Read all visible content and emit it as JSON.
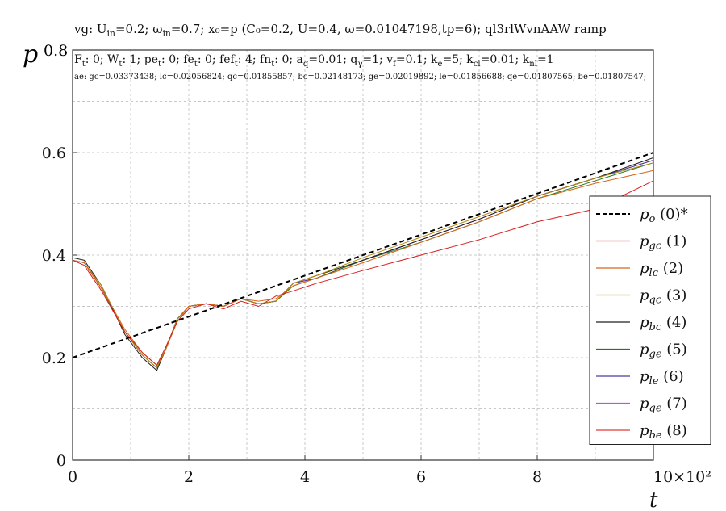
{
  "header": {
    "title": "vg: U_in=0.2; ω_in=0.7; x₀=p (C₀=0.2, U=0.4, ω=0.01047198,tp=6); ql3rlWvnAAW ramp",
    "params": "F_t: 0; W_t: 1; pe_t: 0; fe_t: 0; fef_t: 4; fn_t: 0; a_q=0.01; q_γ=1; v_f=0.1; k_e=5; k_cl=0.01; k_nl=1",
    "errors": "ae: gc=0.03373438; lc=0.02056824; qc=0.01855857; bc=0.02148173; ge=0.02019892; le=0.01856688; qe=0.01807565; be=0.01807547;"
  },
  "chart_data": {
    "type": "line",
    "xlabel": "t",
    "x_multiplier": "10×10²",
    "ylabel": "p",
    "y_top_label": "0.8",
    "xlim": [
      0,
      10
    ],
    "ylim": [
      0,
      0.8
    ],
    "x_ticks": [
      "0",
      "2",
      "4",
      "6",
      "8"
    ],
    "y_ticks": [
      "0",
      "0.2",
      "0.4",
      "0.6"
    ],
    "grid": true,
    "legend_position": "right",
    "series": [
      {
        "name": "p_o (0)*",
        "sub": "o",
        "num": "(0)*",
        "color": "#000000",
        "dashed": true,
        "x": [
          0,
          10
        ],
        "y": [
          0.2,
          0.6
        ]
      },
      {
        "name": "p_gc (1)",
        "sub": "gc",
        "num": "(1)",
        "color": "#d62020",
        "x": [
          0,
          0.2,
          0.5,
          0.9,
          1.2,
          1.45,
          1.6,
          1.8,
          2.0,
          2.3,
          2.6,
          2.9,
          3.2,
          3.5,
          3.8,
          4.2,
          5,
          6,
          7,
          8,
          9,
          10
        ],
        "y": [
          0.39,
          0.38,
          0.33,
          0.25,
          0.21,
          0.185,
          0.22,
          0.27,
          0.295,
          0.305,
          0.295,
          0.31,
          0.3,
          0.32,
          0.33,
          0.345,
          0.37,
          0.4,
          0.43,
          0.465,
          0.49,
          0.545
        ]
      },
      {
        "name": "p_lc (2)",
        "sub": "lc",
        "num": "(2)",
        "color": "#d8661a",
        "x": [
          0,
          0.2,
          0.5,
          0.9,
          1.2,
          1.45,
          1.6,
          1.8,
          2.0,
          2.3,
          2.6,
          2.9,
          3.2,
          3.5,
          3.8,
          4.2,
          5,
          6,
          7,
          8,
          9,
          10
        ],
        "y": [
          0.39,
          0.385,
          0.335,
          0.255,
          0.21,
          0.185,
          0.215,
          0.27,
          0.3,
          0.305,
          0.3,
          0.315,
          0.31,
          0.315,
          0.34,
          0.355,
          0.385,
          0.425,
          0.465,
          0.51,
          0.54,
          0.565
        ]
      },
      {
        "name": "p_qc (3)",
        "sub": "qc",
        "num": "(3)",
        "color": "#b38a10",
        "x": [
          0,
          0.2,
          0.5,
          0.9,
          1.2,
          1.45,
          1.6,
          1.8,
          2.0,
          2.3,
          2.6,
          2.9,
          3.2,
          3.5,
          3.8,
          4.2,
          5,
          6,
          7,
          8,
          9,
          10
        ],
        "y": [
          0.39,
          0.385,
          0.34,
          0.25,
          0.205,
          0.18,
          0.215,
          0.275,
          0.3,
          0.305,
          0.3,
          0.315,
          0.305,
          0.31,
          0.345,
          0.36,
          0.395,
          0.435,
          0.475,
          0.515,
          0.55,
          0.58
        ]
      },
      {
        "name": "p_bc (4)",
        "sub": "bc",
        "num": "(4)",
        "color": "#222222",
        "x": [
          0,
          0.2,
          0.5,
          0.9,
          1.2,
          1.45,
          1.6,
          1.8,
          2.0,
          2.3,
          2.6,
          2.9,
          3.2,
          3.5,
          3.8,
          4.2,
          5,
          6,
          7,
          8,
          9,
          10
        ],
        "y": [
          0.395,
          0.39,
          0.34,
          0.245,
          0.2,
          0.175,
          0.215,
          0.275,
          0.3,
          0.305,
          0.3,
          0.315,
          0.305,
          0.31,
          0.345,
          0.36,
          0.39,
          0.43,
          0.47,
          0.515,
          0.55,
          0.59
        ]
      },
      {
        "name": "p_ge (5)",
        "sub": "ge",
        "num": "(5)",
        "color": "#1f7a1f",
        "x": [
          0,
          0.2,
          0.5,
          0.9,
          1.2,
          1.45,
          1.6,
          1.8,
          2.0,
          2.3,
          2.6,
          2.9,
          3.2,
          3.5,
          3.8,
          4.2,
          5,
          6,
          7,
          8,
          9,
          10
        ],
        "y": [
          0.39,
          0.385,
          0.335,
          0.25,
          0.205,
          0.18,
          0.215,
          0.275,
          0.3,
          0.305,
          0.3,
          0.315,
          0.305,
          0.31,
          0.34,
          0.355,
          0.39,
          0.425,
          0.465,
          0.51,
          0.545,
          0.58
        ]
      },
      {
        "name": "p_le (6)",
        "sub": "le",
        "num": "(6)",
        "color": "#4a3fa0",
        "x": [
          0,
          0.2,
          0.5,
          0.9,
          1.2,
          1.45,
          1.6,
          1.8,
          2.0,
          2.3,
          2.6,
          2.9,
          3.2,
          3.5,
          3.8,
          4.2,
          5,
          6,
          7,
          8,
          9,
          10
        ],
        "y": [
          0.39,
          0.385,
          0.335,
          0.25,
          0.205,
          0.18,
          0.215,
          0.275,
          0.3,
          0.305,
          0.3,
          0.315,
          0.305,
          0.31,
          0.345,
          0.355,
          0.39,
          0.43,
          0.47,
          0.515,
          0.55,
          0.585
        ]
      },
      {
        "name": "p_qe (7)",
        "sub": "qe",
        "num": "(7)",
        "color": "#c050e0",
        "x": [
          0,
          0.2,
          0.5,
          0.9,
          1.2,
          1.45,
          1.6,
          1.8,
          2.0,
          2.3,
          2.6,
          2.9,
          3.2,
          3.5,
          3.8,
          4.2,
          5,
          6,
          7,
          8,
          9,
          10
        ],
        "y": [
          0.39,
          0.385,
          0.335,
          0.25,
          0.205,
          0.18,
          0.215,
          0.275,
          0.3,
          0.305,
          0.3,
          0.315,
          0.305,
          0.31,
          0.345,
          0.355,
          0.39,
          0.43,
          0.47,
          0.515,
          0.55,
          0.585
        ]
      },
      {
        "name": "p_be (8)",
        "sub": "be",
        "num": "(8)",
        "color": "#e03a3a",
        "x": [
          0,
          0.2,
          0.5,
          0.9,
          1.2,
          1.45,
          1.6,
          1.8,
          2.0,
          2.3,
          2.6,
          2.9,
          3.2,
          3.5,
          3.8,
          4.2,
          5,
          6,
          7,
          8,
          9,
          10
        ],
        "y": [
          0.39,
          0.385,
          0.335,
          0.25,
          0.205,
          0.18,
          0.215,
          0.275,
          0.3,
          0.305,
          0.3,
          0.315,
          0.305,
          0.31,
          0.345,
          0.355,
          0.39,
          0.43,
          0.47,
          0.515,
          0.55,
          0.585
        ]
      }
    ]
  }
}
